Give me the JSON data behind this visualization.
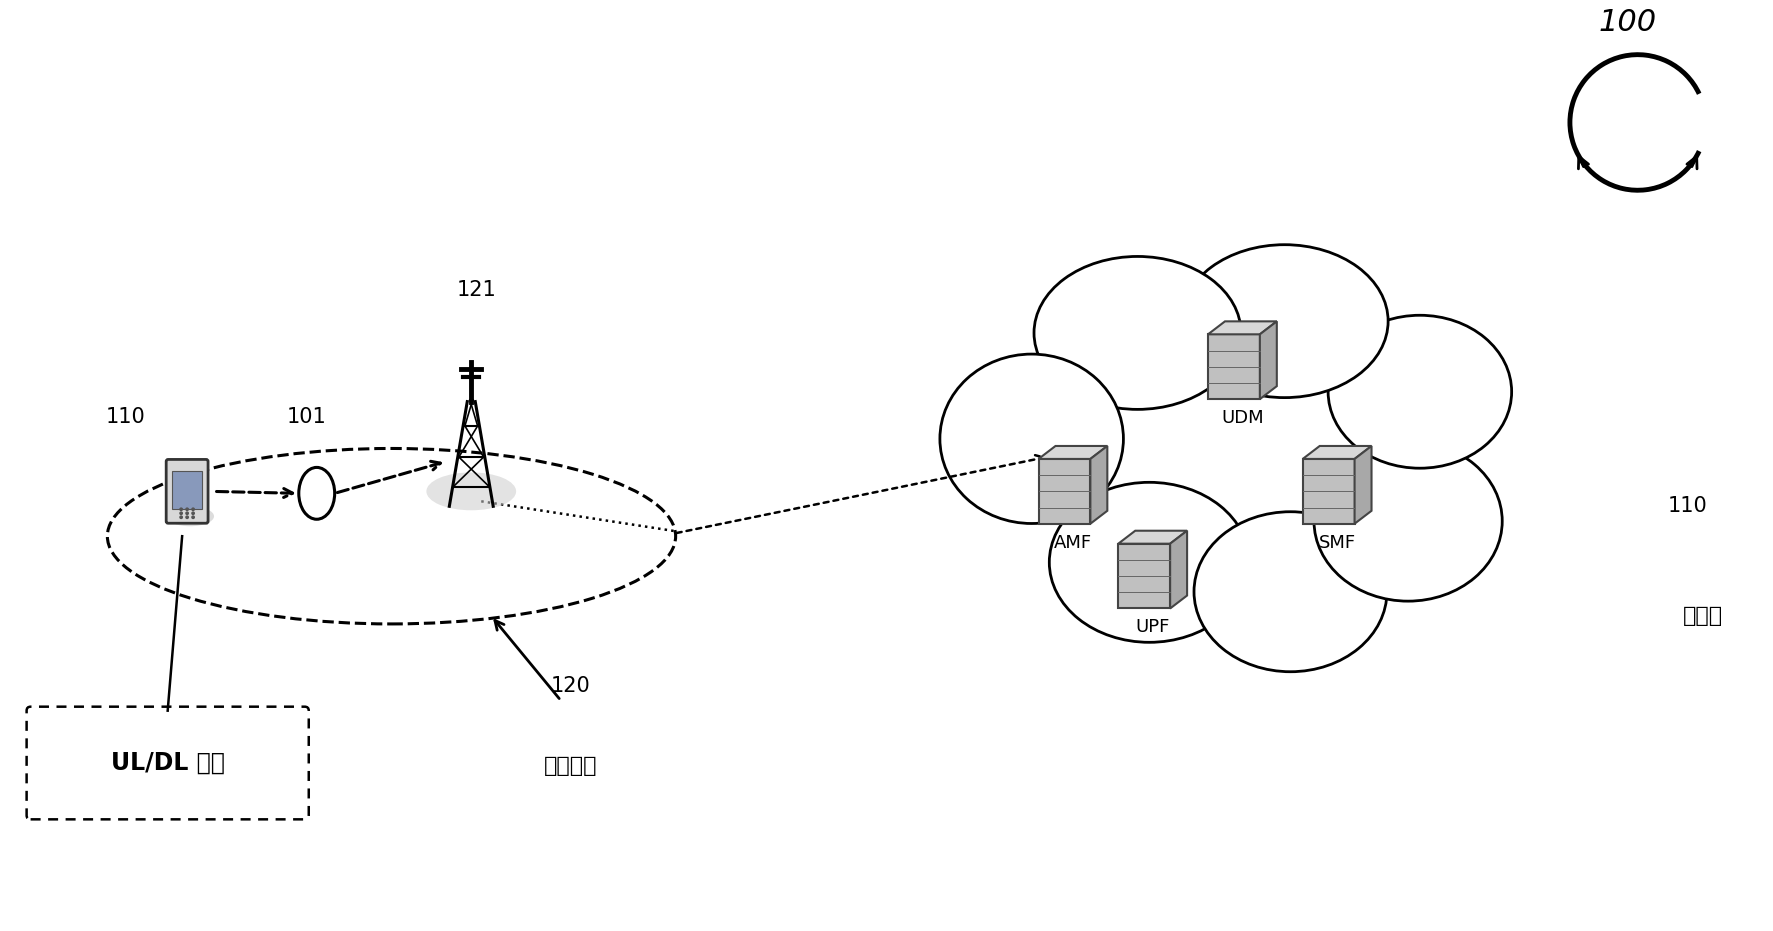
{
  "bg_color": "#ffffff",
  "fig_width": 17.73,
  "fig_height": 9.31,
  "dpi": 100,
  "label_100": "100",
  "label_110_left": "110",
  "label_101": "101",
  "label_121": "121",
  "label_120": "120",
  "label_110_right": "110",
  "label_uldl": "UL/DL 传输",
  "label_access": "接入网络",
  "label_core": "核心网",
  "label_amf": "AMF",
  "label_udm": "UDM",
  "label_smf": "SMF",
  "label_upf": "UPF"
}
